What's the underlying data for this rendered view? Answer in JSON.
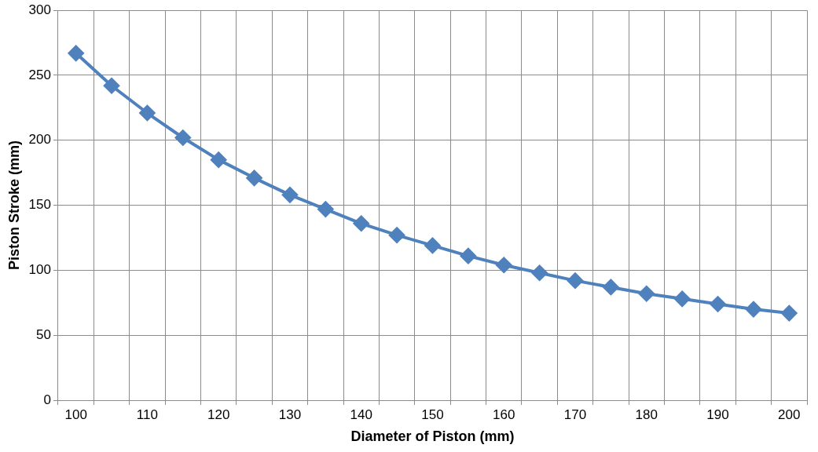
{
  "chart_data": {
    "type": "line",
    "xlabel": "Diameter of Piston (mm)",
    "ylabel": "Piston Stroke (mm)",
    "categories": [
      "100",
      null,
      "110",
      null,
      "120",
      null,
      "130",
      null,
      "140",
      null,
      "150",
      null,
      "160",
      null,
      "170",
      null,
      "180",
      null,
      "190",
      null,
      "200"
    ],
    "series": [
      {
        "color": "#4f81bd",
        "values": [
          267,
          242,
          221,
          202,
          185,
          171,
          158,
          147,
          136,
          127,
          119,
          111,
          104,
          98,
          92,
          87,
          82,
          78,
          74,
          70,
          67
        ]
      }
    ],
    "ylim": [
      0,
      300
    ],
    "yticks": [
      0,
      50,
      100,
      150,
      200,
      250,
      300
    ],
    "grid": true,
    "legend": false,
    "marker": "diamond",
    "line_style": "solid"
  }
}
